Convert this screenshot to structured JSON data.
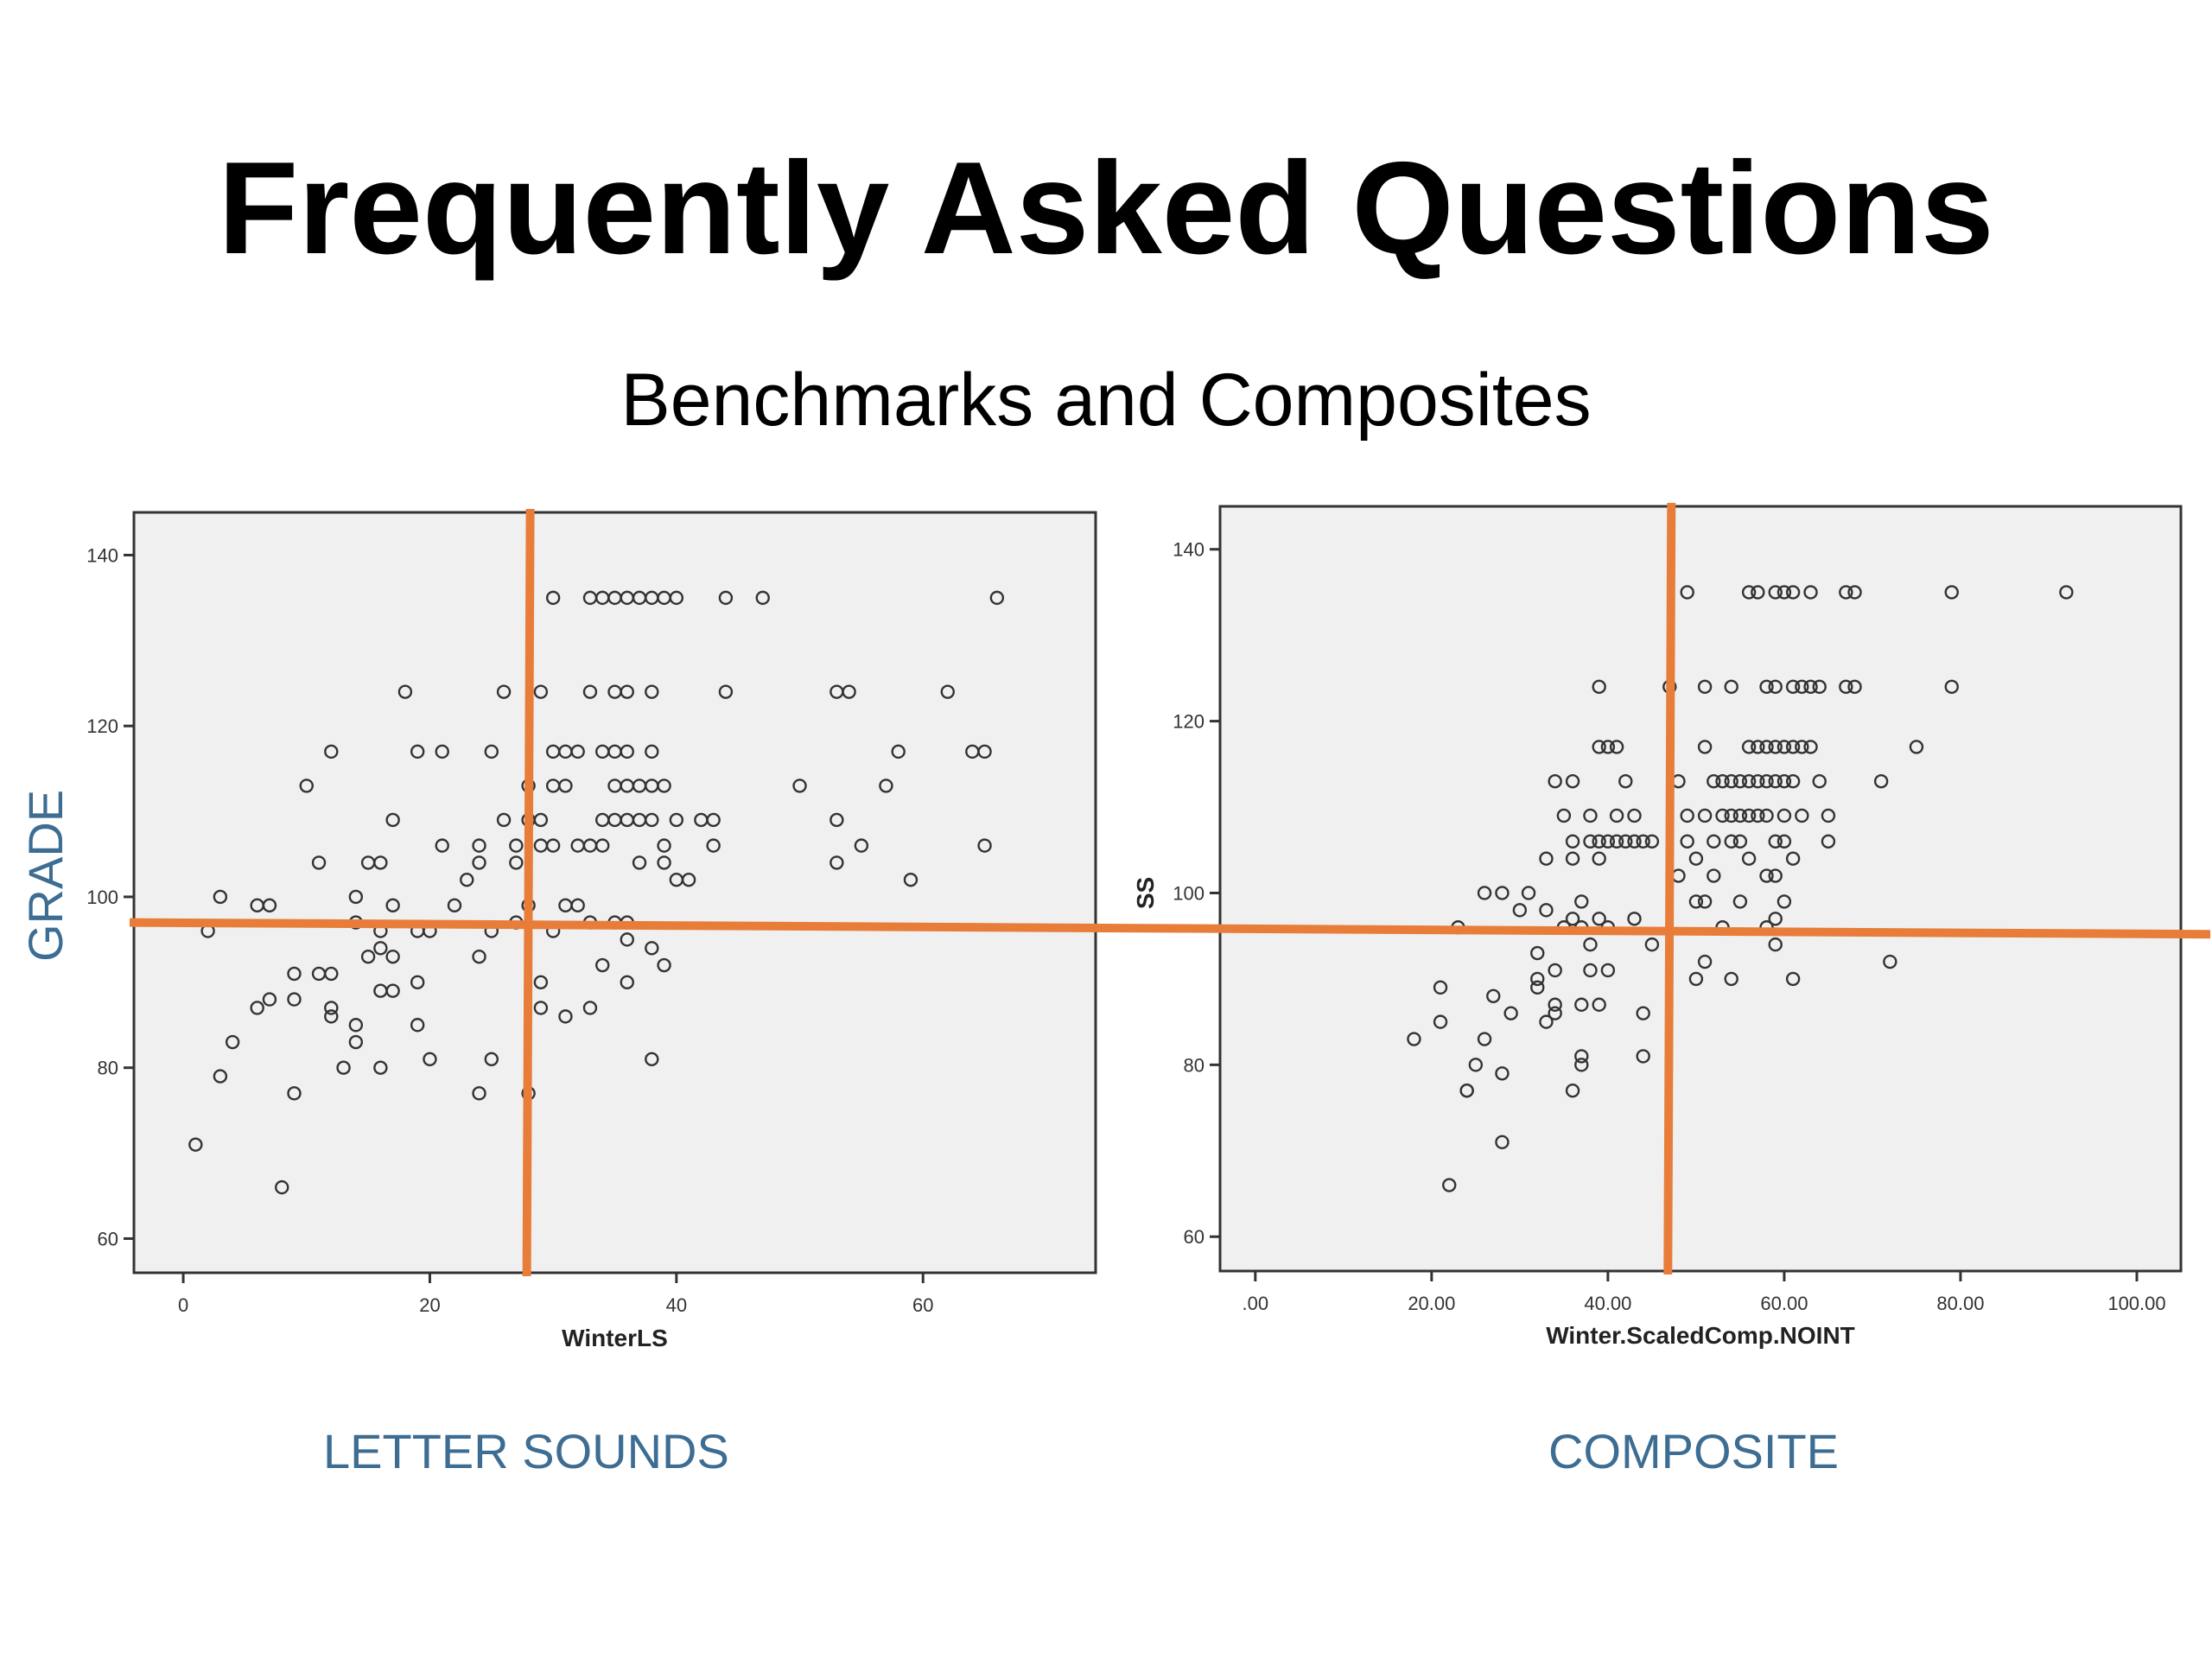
{
  "slide": {
    "title": "Frequently Asked Questions",
    "subtitle": "Benchmarks and Composites",
    "caption_left": "LETTER SOUNDS",
    "caption_right": "COMPOSITE",
    "side_label": "GRADE"
  },
  "colors": {
    "plot_bg": "#f0f0f0",
    "marker": "#333333",
    "cut_lines": "#e87d3a",
    "caption": "#3d6d92"
  },
  "chart_data": [
    {
      "type": "scatter",
      "title": "",
      "xlabel": "WinterLS",
      "ylabel": "",
      "xlim": [
        -4,
        74
      ],
      "ylim": [
        56,
        145
      ],
      "x_ticks": [
        "0",
        "20",
        "40",
        "60"
      ],
      "y_ticks": [
        "60",
        "80",
        "100",
        "120",
        "140"
      ],
      "benchmark_x": 28,
      "grid": false,
      "points": [
        [
          1,
          71
        ],
        [
          2,
          96
        ],
        [
          3,
          100
        ],
        [
          3,
          79
        ],
        [
          4,
          83
        ],
        [
          6,
          87
        ],
        [
          6,
          99
        ],
        [
          7,
          88
        ],
        [
          7,
          99
        ],
        [
          8,
          66
        ],
        [
          9,
          91
        ],
        [
          9,
          88
        ],
        [
          9,
          77
        ],
        [
          10,
          113
        ],
        [
          11,
          104
        ],
        [
          11,
          91
        ],
        [
          12,
          117
        ],
        [
          12,
          91
        ],
        [
          12,
          87
        ],
        [
          12,
          86
        ],
        [
          13,
          80
        ],
        [
          14,
          100
        ],
        [
          14,
          97
        ],
        [
          14,
          85
        ],
        [
          14,
          83
        ],
        [
          15,
          104
        ],
        [
          15,
          93
        ],
        [
          16,
          104
        ],
        [
          16,
          96
        ],
        [
          16,
          94
        ],
        [
          16,
          89
        ],
        [
          16,
          80
        ],
        [
          17,
          109
        ],
        [
          17,
          99
        ],
        [
          17,
          93
        ],
        [
          17,
          89
        ],
        [
          18,
          124
        ],
        [
          19,
          117
        ],
        [
          19,
          96
        ],
        [
          19,
          90
        ],
        [
          19,
          85
        ],
        [
          20,
          96
        ],
        [
          20,
          81
        ],
        [
          21,
          117
        ],
        [
          21,
          106
        ],
        [
          22,
          99
        ],
        [
          23,
          102
        ],
        [
          24,
          106
        ],
        [
          24,
          104
        ],
        [
          24,
          93
        ],
        [
          24,
          77
        ],
        [
          25,
          117
        ],
        [
          25,
          96
        ],
        [
          25,
          81
        ],
        [
          26,
          124
        ],
        [
          26,
          109
        ],
        [
          27,
          106
        ],
        [
          27,
          104
        ],
        [
          27,
          97
        ],
        [
          28,
          113
        ],
        [
          28,
          109
        ],
        [
          28,
          99
        ],
        [
          28,
          77
        ],
        [
          29,
          124
        ],
        [
          29,
          109
        ],
        [
          29,
          106
        ],
        [
          29,
          90
        ],
        [
          29,
          87
        ],
        [
          30,
          135
        ],
        [
          30,
          117
        ],
        [
          30,
          113
        ],
        [
          30,
          106
        ],
        [
          30,
          96
        ],
        [
          31,
          117
        ],
        [
          31,
          113
        ],
        [
          31,
          99
        ],
        [
          31,
          86
        ],
        [
          32,
          117
        ],
        [
          32,
          106
        ],
        [
          32,
          99
        ],
        [
          33,
          135
        ],
        [
          33,
          124
        ],
        [
          33,
          106
        ],
        [
          33,
          97
        ],
        [
          33,
          87
        ],
        [
          34,
          135
        ],
        [
          34,
          117
        ],
        [
          34,
          109
        ],
        [
          34,
          106
        ],
        [
          34,
          92
        ],
        [
          35,
          135
        ],
        [
          35,
          124
        ],
        [
          35,
          117
        ],
        [
          35,
          113
        ],
        [
          35,
          109
        ],
        [
          35,
          97
        ],
        [
          36,
          135
        ],
        [
          36,
          124
        ],
        [
          36,
          117
        ],
        [
          36,
          113
        ],
        [
          36,
          109
        ],
        [
          36,
          97
        ],
        [
          36,
          95
        ],
        [
          36,
          90
        ],
        [
          37,
          135
        ],
        [
          37,
          113
        ],
        [
          37,
          109
        ],
        [
          37,
          104
        ],
        [
          38,
          135
        ],
        [
          38,
          124
        ],
        [
          38,
          117
        ],
        [
          38,
          113
        ],
        [
          38,
          109
        ],
        [
          38,
          94
        ],
        [
          38,
          81
        ],
        [
          39,
          135
        ],
        [
          39,
          113
        ],
        [
          39,
          106
        ],
        [
          39,
          104
        ],
        [
          39,
          92
        ],
        [
          40,
          135
        ],
        [
          40,
          109
        ],
        [
          40,
          102
        ],
        [
          41,
          102
        ],
        [
          42,
          109
        ],
        [
          43,
          109
        ],
        [
          43,
          106
        ],
        [
          44,
          135
        ],
        [
          44,
          124
        ],
        [
          47,
          135
        ],
        [
          50,
          113
        ],
        [
          53,
          124
        ],
        [
          53,
          109
        ],
        [
          53,
          104
        ],
        [
          54,
          124
        ],
        [
          55,
          106
        ],
        [
          57,
          113
        ],
        [
          58,
          117
        ],
        [
          59,
          102
        ],
        [
          62,
          124
        ],
        [
          64,
          117
        ],
        [
          65,
          117
        ],
        [
          65,
          106
        ],
        [
          66,
          135
        ]
      ]
    },
    {
      "type": "scatter",
      "title": "",
      "xlabel": "Winter.ScaledComp.NOINT",
      "ylabel": "SS",
      "xlim": [
        -4,
        105
      ],
      "ylim": [
        56,
        145
      ],
      "x_ticks": [
        ".00",
        "20.00",
        "40.00",
        "60.00",
        "80.00",
        "100.00"
      ],
      "y_ticks": [
        "60",
        "80",
        "100",
        "120",
        "140"
      ],
      "benchmark_x": 47,
      "grid": false,
      "points": [
        [
          18,
          83
        ],
        [
          21,
          85
        ],
        [
          21,
          89
        ],
        [
          22,
          66
        ],
        [
          23,
          96
        ],
        [
          24,
          77
        ],
        [
          24,
          77
        ],
        [
          25,
          80
        ],
        [
          26,
          83
        ],
        [
          26,
          100
        ],
        [
          27,
          88
        ],
        [
          28,
          79
        ],
        [
          28,
          71
        ],
        [
          28,
          100
        ],
        [
          29,
          86
        ],
        [
          30,
          98
        ],
        [
          31,
          100
        ],
        [
          32,
          93
        ],
        [
          32,
          90
        ],
        [
          32,
          89
        ],
        [
          33,
          104
        ],
        [
          33,
          98
        ],
        [
          33,
          85
        ],
        [
          34,
          113
        ],
        [
          34,
          91
        ],
        [
          34,
          87
        ],
        [
          34,
          86
        ],
        [
          35,
          109
        ],
        [
          35,
          96
        ],
        [
          36,
          113
        ],
        [
          36,
          106
        ],
        [
          36,
          104
        ],
        [
          36,
          97
        ],
        [
          36,
          77
        ],
        [
          37,
          99
        ],
        [
          37,
          96
        ],
        [
          37,
          87
        ],
        [
          37,
          81
        ],
        [
          37,
          80
        ],
        [
          38,
          109
        ],
        [
          38,
          106
        ],
        [
          38,
          94
        ],
        [
          38,
          91
        ],
        [
          39,
          124
        ],
        [
          39,
          117
        ],
        [
          39,
          106
        ],
        [
          39,
          104
        ],
        [
          39,
          97
        ],
        [
          39,
          87
        ],
        [
          40,
          117
        ],
        [
          40,
          106
        ],
        [
          40,
          96
        ],
        [
          40,
          91
        ],
        [
          41,
          117
        ],
        [
          41,
          109
        ],
        [
          41,
          106
        ],
        [
          42,
          113
        ],
        [
          42,
          106
        ],
        [
          43,
          109
        ],
        [
          43,
          106
        ],
        [
          43,
          97
        ],
        [
          44,
          106
        ],
        [
          44,
          86
        ],
        [
          44,
          81
        ],
        [
          45,
          106
        ],
        [
          45,
          94
        ],
        [
          47,
          124
        ],
        [
          48,
          113
        ],
        [
          48,
          102
        ],
        [
          49,
          135
        ],
        [
          49,
          109
        ],
        [
          49,
          106
        ],
        [
          50,
          104
        ],
        [
          50,
          99
        ],
        [
          50,
          90
        ],
        [
          51,
          124
        ],
        [
          51,
          117
        ],
        [
          51,
          109
        ],
        [
          51,
          99
        ],
        [
          51,
          92
        ],
        [
          52,
          113
        ],
        [
          52,
          106
        ],
        [
          52,
          102
        ],
        [
          53,
          113
        ],
        [
          53,
          109
        ],
        [
          53,
          96
        ],
        [
          54,
          124
        ],
        [
          54,
          113
        ],
        [
          54,
          109
        ],
        [
          54,
          106
        ],
        [
          54,
          90
        ],
        [
          55,
          113
        ],
        [
          55,
          109
        ],
        [
          55,
          106
        ],
        [
          55,
          99
        ],
        [
          56,
          135
        ],
        [
          56,
          117
        ],
        [
          56,
          113
        ],
        [
          56,
          109
        ],
        [
          56,
          104
        ],
        [
          57,
          135
        ],
        [
          57,
          117
        ],
        [
          57,
          113
        ],
        [
          57,
          109
        ],
        [
          58,
          124
        ],
        [
          58,
          117
        ],
        [
          58,
          113
        ],
        [
          58,
          109
        ],
        [
          58,
          102
        ],
        [
          58,
          96
        ],
        [
          59,
          135
        ],
        [
          59,
          124
        ],
        [
          59,
          117
        ],
        [
          59,
          113
        ],
        [
          59,
          106
        ],
        [
          59,
          102
        ],
        [
          59,
          97
        ],
        [
          59,
          94
        ],
        [
          60,
          135
        ],
        [
          60,
          117
        ],
        [
          60,
          113
        ],
        [
          60,
          109
        ],
        [
          60,
          106
        ],
        [
          60,
          99
        ],
        [
          61,
          135
        ],
        [
          61,
          124
        ],
        [
          61,
          117
        ],
        [
          61,
          113
        ],
        [
          61,
          104
        ],
        [
          61,
          90
        ],
        [
          62,
          124
        ],
        [
          62,
          117
        ],
        [
          62,
          109
        ],
        [
          63,
          135
        ],
        [
          63,
          124
        ],
        [
          63,
          117
        ],
        [
          64,
          124
        ],
        [
          64,
          113
        ],
        [
          65,
          109
        ],
        [
          65,
          106
        ],
        [
          67,
          135
        ],
        [
          67,
          124
        ],
        [
          68,
          135
        ],
        [
          68,
          124
        ],
        [
          71,
          113
        ],
        [
          72,
          92
        ],
        [
          75,
          117
        ],
        [
          79,
          135
        ],
        [
          79,
          124
        ],
        [
          92,
          135
        ]
      ]
    }
  ]
}
